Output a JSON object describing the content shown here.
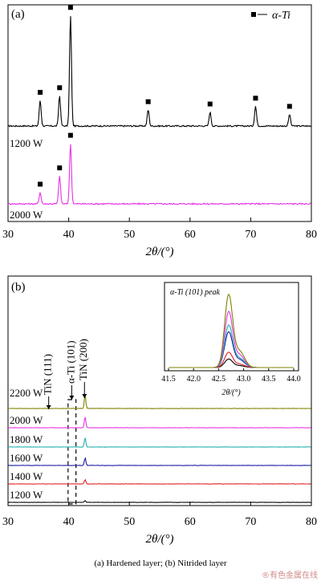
{
  "caption": "(a) Hardened layer; (b) Nitrided layer",
  "watermark": "®有色金属在线",
  "chart_data": [
    {
      "type": "line",
      "panel_label": "(a)",
      "xlabel": "2θ/(°)",
      "ylabel": "",
      "xlim": [
        30,
        80
      ],
      "xticks": [
        30,
        40,
        50,
        60,
        70,
        80
      ],
      "legend": {
        "entry": "α-Ti",
        "placement": "top-right",
        "marker": "square"
      },
      "series": [
        {
          "name": "1200 W",
          "color": "#000000",
          "baseline": 0.0,
          "peaks": [
            {
              "x": 35.3,
              "h": 0.22
            },
            {
              "x": 38.5,
              "h": 0.26
            },
            {
              "x": 40.3,
              "h": 0.95
            },
            {
              "x": 53.1,
              "h": 0.14
            },
            {
              "x": 63.3,
              "h": 0.12
            },
            {
              "x": 70.8,
              "h": 0.17
            },
            {
              "x": 76.4,
              "h": 0.1
            }
          ],
          "markers": [
            35.3,
            38.5,
            40.3,
            53.1,
            63.3,
            70.8,
            76.4
          ]
        },
        {
          "name": "2000 W",
          "color": "#e633e6",
          "baseline": 0.0,
          "peaks": [
            {
              "x": 35.3,
              "h": 0.1
            },
            {
              "x": 38.5,
              "h": 0.24
            },
            {
              "x": 40.3,
              "h": 0.52
            }
          ],
          "markers": [
            35.3,
            38.5,
            40.3
          ]
        }
      ]
    },
    {
      "type": "line",
      "panel_label": "(b)",
      "xlabel": "2θ/(°)",
      "ylabel": "",
      "xlim": [
        30,
        80
      ],
      "xticks": [
        30,
        40,
        50,
        60,
        70,
        80
      ],
      "annotations": [
        {
          "text": "TiN (111)",
          "x": 36.7
        },
        {
          "text": "α-Ti (101)",
          "x": 40.5
        },
        {
          "text": "TiN (200)",
          "x": 42.6
        }
      ],
      "dashed_box_x": [
        39.9,
        41.2
      ],
      "peak_x": 42.7,
      "series": [
        {
          "name": "1200 W",
          "color": "#000000",
          "peak": 0.1
        },
        {
          "name": "1400 W",
          "color": "#e02020",
          "peak": 0.25
        },
        {
          "name": "1600 W",
          "color": "#1a1aa6",
          "peak": 0.45
        },
        {
          "name": "1800 W",
          "color": "#20b0b0",
          "peak": 0.55
        },
        {
          "name": "2000 W",
          "color": "#e633e6",
          "peak": 0.65
        },
        {
          "name": "2200 W",
          "color": "#808000",
          "peak": 0.8
        }
      ],
      "inset": {
        "title": "α-Ti (101) peak",
        "xlabel": "2θ/(°)",
        "xlim": [
          41.5,
          44.0
        ],
        "xticks": [
          41.5,
          42.0,
          42.5,
          43.0,
          43.5,
          44.0
        ],
        "peak_x": 42.7,
        "series": [
          {
            "name": "1200 W",
            "color": "#000000",
            "h": 0.1
          },
          {
            "name": "1400 W",
            "color": "#e02020",
            "h": 0.18
          },
          {
            "name": "1600 W",
            "color": "#1a1aa6",
            "h": 0.42
          },
          {
            "name": "1800 W",
            "color": "#20b0b0",
            "h": 0.5
          },
          {
            "name": "2000 W",
            "color": "#e633e6",
            "h": 0.66
          },
          {
            "name": "2200 W",
            "color": "#808000",
            "h": 0.86
          }
        ]
      }
    }
  ]
}
